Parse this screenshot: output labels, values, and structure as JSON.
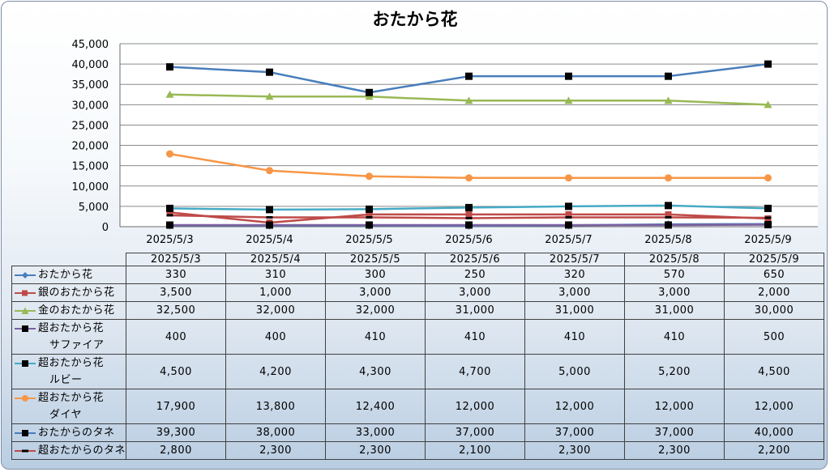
{
  "chart_data": {
    "type": "line",
    "title": "おたから花",
    "categories": [
      "2025/5/3",
      "2025/5/4",
      "2025/5/5",
      "2025/5/6",
      "2025/5/7",
      "2025/5/8",
      "2025/5/9"
    ],
    "ylim": [
      0,
      45000
    ],
    "yticks": [
      "0",
      "5,000",
      "10,000",
      "15,000",
      "20,000",
      "25,000",
      "30,000",
      "35,000",
      "40,000",
      "45,000"
    ],
    "grid": true,
    "legend": "data-table",
    "series": [
      {
        "name": "おたから花",
        "label_lines": [
          "おたから花"
        ],
        "values": [
          330,
          310,
          300,
          250,
          320,
          570,
          650
        ],
        "labels": [
          "330",
          "310",
          "300",
          "250",
          "320",
          "570",
          "650"
        ],
        "color": "#4a7ebb",
        "marker": "diamond"
      },
      {
        "name": "銀のおたから花",
        "label_lines": [
          "銀のおたから花"
        ],
        "values": [
          3500,
          1000,
          3000,
          3000,
          3000,
          3000,
          2000
        ],
        "labels": [
          "3,500",
          "1,000",
          "3,000",
          "3,000",
          "3,000",
          "3,000",
          "2,000"
        ],
        "color": "#be4b48",
        "marker": "square"
      },
      {
        "name": "金のおたから花",
        "label_lines": [
          "金のおたから花"
        ],
        "values": [
          32500,
          32000,
          32000,
          31000,
          31000,
          31000,
          30000
        ],
        "labels": [
          "32,500",
          "32,000",
          "32,000",
          "31,000",
          "31,000",
          "31,000",
          "30,000"
        ],
        "color": "#98b954",
        "marker": "triangle"
      },
      {
        "name": "超おたから花 サファイア",
        "label_lines": [
          "超おたから花",
          "サファイア"
        ],
        "values": [
          400,
          400,
          410,
          410,
          410,
          410,
          500
        ],
        "labels": [
          "400",
          "400",
          "410",
          "410",
          "410",
          "410",
          "500"
        ],
        "color": "#7d60a0",
        "marker": "blacksquare"
      },
      {
        "name": "超おたから花 ルビー",
        "label_lines": [
          "超おたから花",
          "ルビー"
        ],
        "values": [
          4500,
          4200,
          4300,
          4700,
          5000,
          5200,
          4500
        ],
        "labels": [
          "4,500",
          "4,200",
          "4,300",
          "4,700",
          "5,000",
          "5,200",
          "4,500"
        ],
        "color": "#46aac5",
        "marker": "blacksquare"
      },
      {
        "name": "超おたから花 ダイヤ",
        "label_lines": [
          "超おたから花",
          "ダイヤ"
        ],
        "values": [
          17900,
          13800,
          12400,
          12000,
          12000,
          12000,
          12000
        ],
        "labels": [
          "17,900",
          "13,800",
          "12,400",
          "12,000",
          "12,000",
          "12,000",
          "12,000"
        ],
        "color": "#f79646",
        "marker": "circle"
      },
      {
        "name": "おたからのタネ",
        "label_lines": [
          "おたからのタネ"
        ],
        "values": [
          39300,
          38000,
          33000,
          37000,
          37000,
          37000,
          40000
        ],
        "labels": [
          "39,300",
          "38,000",
          "33,000",
          "37,000",
          "37,000",
          "37,000",
          "40,000"
        ],
        "color": "#4a7ebb",
        "marker": "blacksquare"
      },
      {
        "name": "超おたからのタネ",
        "label_lines": [
          "超おたからのタネ"
        ],
        "values": [
          2800,
          2300,
          2300,
          2100,
          2300,
          2300,
          2200
        ],
        "labels": [
          "2,800",
          "2,300",
          "2,300",
          "2,100",
          "2,300",
          "2,300",
          "2,200"
        ],
        "color": "#be4b48",
        "marker": "dash"
      }
    ]
  }
}
